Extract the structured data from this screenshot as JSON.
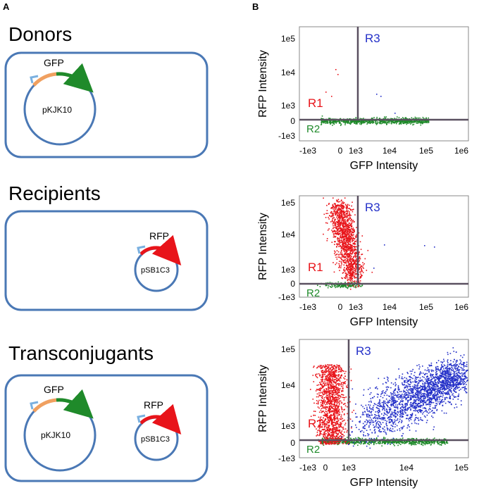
{
  "panel_a": {
    "letter": "A",
    "donors": {
      "title": "Donors",
      "gene": "GFP",
      "plasmid": "pKJK10"
    },
    "recipients": {
      "title": "Recipients",
      "gene": "RFP",
      "plasmid": "pSB1C3"
    },
    "transconjugants": {
      "title": "Transconjugants",
      "gene1": "GFP",
      "plasmid1": "pKJK10",
      "gene2": "RFP",
      "plasmid2": "pSB1C3"
    }
  },
  "panel_b": {
    "letter": "B"
  },
  "colors": {
    "cell_border": "#4a78b5",
    "green": "#1f8a2a",
    "red": "#e8141a",
    "blue": "#2430c8",
    "orange": "#f0a060",
    "promoter": "#7ab0e0",
    "gate": "#5a5060"
  },
  "chart_data": [
    {
      "type": "scatter",
      "xlabel": "GFP Intensity",
      "ylabel": "RFP Intensity",
      "x_ticks": [
        "-1e3",
        "0",
        "1e3",
        "1e4",
        "1e5",
        "1e6"
      ],
      "y_ticks": [
        "1e5",
        "1e4",
        "1e3",
        "0",
        "-1e3"
      ],
      "regions": [
        "R1",
        "R2",
        "R3"
      ],
      "populations": {
        "R1": "few",
        "R2": "many",
        "R3": "very few"
      }
    },
    {
      "type": "scatter",
      "xlabel": "GFP Intensity",
      "ylabel": "RFP Intensity",
      "x_ticks": [
        "-1e3",
        "0",
        "1e3",
        "1e4",
        "1e5",
        "1e6"
      ],
      "y_ticks": [
        "1e5",
        "1e4",
        "1e3",
        "0",
        "-1e3"
      ],
      "regions": [
        "R1",
        "R2",
        "R3"
      ],
      "populations": {
        "R1": "many",
        "R2": "few",
        "R3": "very few"
      }
    },
    {
      "type": "scatter",
      "xlabel": "GFP Intensity",
      "ylabel": "RFP Intensity",
      "x_ticks": [
        "-1e3",
        "0",
        "1e3",
        "1e4",
        "1e5"
      ],
      "y_ticks": [
        "1e5",
        "1e4",
        "1e3",
        "0",
        "-1e3"
      ],
      "regions": [
        "R1",
        "R2",
        "R3"
      ],
      "populations": {
        "R1": "many",
        "R2": "many",
        "R3": "many"
      }
    }
  ]
}
